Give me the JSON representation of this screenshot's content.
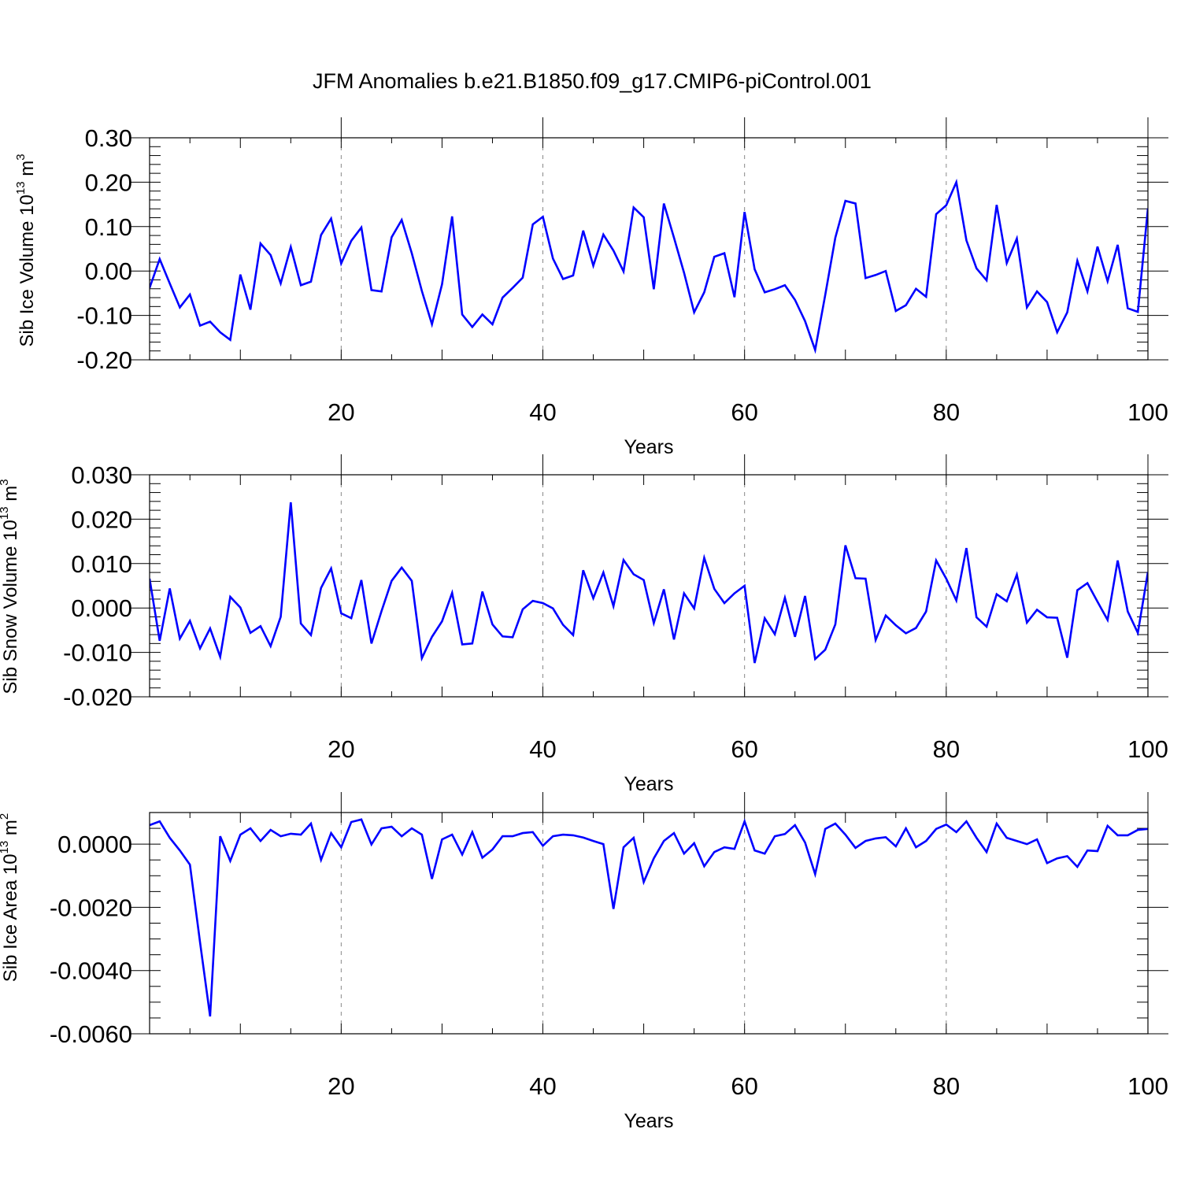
{
  "chart_data": {
    "type": "line",
    "title": "JFM Anomalies b.e21.B1850.f09_g17.CMIP6-piControl.001",
    "series_color": "#0000ff",
    "panels": [
      {
        "id": "ice-volume",
        "ylabel": "Sib Ice Volume 10",
        "ylabel_sup": "13",
        "ylabel_unit": " m",
        "ylabel_unit_sup": "3",
        "xlabel": "Years",
        "xlim": [
          1,
          100
        ],
        "ylim": [
          -0.2,
          0.3
        ],
        "xticks": [
          "20",
          "40",
          "60",
          "80",
          "100"
        ],
        "xtick_values": [
          20,
          40,
          60,
          80,
          100
        ],
        "yticks": [
          "0.30",
          "0.20",
          "0.10",
          "0.00",
          "-0.10",
          "-0.20"
        ],
        "ytick_values": [
          0.3,
          0.2,
          0.1,
          0.0,
          -0.1,
          -0.2
        ],
        "grid_x": [
          20,
          40,
          60,
          80
        ],
        "minor_y_step": 0.02,
        "values": [
          -0.038,
          0.027,
          -0.028,
          -0.082,
          -0.053,
          -0.123,
          -0.114,
          -0.138,
          -0.155,
          -0.008,
          -0.087,
          0.062,
          0.036,
          -0.028,
          0.054,
          -0.032,
          -0.024,
          0.081,
          0.118,
          0.017,
          0.068,
          0.098,
          -0.043,
          -0.046,
          0.076,
          0.115,
          0.04,
          -0.045,
          -0.12,
          -0.03,
          0.123,
          -0.098,
          -0.126,
          -0.098,
          -0.12,
          -0.06,
          -0.038,
          -0.015,
          0.105,
          0.122,
          0.028,
          -0.018,
          -0.01,
          0.091,
          0.012,
          0.082,
          0.046,
          -0.001,
          0.143,
          0.121,
          -0.041,
          0.152,
          0.075,
          -0.004,
          -0.093,
          -0.048,
          0.032,
          0.04,
          -0.059,
          0.133,
          0.004,
          -0.048,
          -0.041,
          -0.032,
          -0.065,
          -0.113,
          -0.178,
          -0.054,
          0.075,
          0.158,
          0.152,
          -0.016,
          -0.009,
          0.0,
          -0.09,
          -0.077,
          -0.04,
          -0.058,
          0.128,
          0.148,
          0.2,
          0.069,
          0.006,
          -0.021,
          0.149,
          0.018,
          0.073,
          -0.082,
          -0.046,
          -0.07,
          -0.138,
          -0.093,
          0.023,
          -0.046,
          0.055,
          -0.023,
          0.059,
          -0.084,
          -0.092,
          0.141
        ]
      },
      {
        "id": "snow-volume",
        "ylabel": "Sib Snow Volume 10",
        "ylabel_sup": "13",
        "ylabel_unit": " m",
        "ylabel_unit_sup": "3",
        "xlabel": "Years",
        "xlim": [
          1,
          100
        ],
        "ylim": [
          -0.02,
          0.03
        ],
        "xticks": [
          "20",
          "40",
          "60",
          "80",
          "100"
        ],
        "xtick_values": [
          20,
          40,
          60,
          80,
          100
        ],
        "yticks": [
          "0.030",
          "0.020",
          "0.010",
          "0.000",
          "-0.010",
          "-0.020"
        ],
        "ytick_values": [
          0.03,
          0.02,
          0.01,
          0.0,
          -0.01,
          -0.02
        ],
        "grid_x": [
          20,
          40,
          60,
          80
        ],
        "minor_y_step": 0.002,
        "values": [
          0.0066,
          -0.0074,
          0.0044,
          -0.0069,
          -0.0029,
          -0.0091,
          -0.0046,
          -0.011,
          0.0025,
          0.0001,
          -0.0056,
          -0.0041,
          -0.0086,
          -0.002,
          0.0238,
          -0.0035,
          -0.0061,
          0.0045,
          0.0089,
          -0.0012,
          -0.0023,
          0.0063,
          -0.008,
          -0.0007,
          0.0061,
          0.0091,
          0.0061,
          -0.0113,
          -0.0065,
          -0.003,
          0.0034,
          -0.0082,
          -0.008,
          0.0037,
          -0.0037,
          -0.0064,
          -0.0066,
          -0.0003,
          0.0016,
          0.0011,
          -0.0001,
          -0.0038,
          -0.0061,
          0.0085,
          0.0022,
          0.008,
          0.0004,
          0.0108,
          0.0076,
          0.0063,
          -0.0034,
          0.0042,
          -0.0071,
          0.0033,
          -0.0001,
          0.0113,
          0.0043,
          0.0011,
          0.0033,
          0.005,
          -0.0124,
          -0.0023,
          -0.0059,
          0.0023,
          -0.0065,
          0.0027,
          -0.0115,
          -0.0094,
          -0.0037,
          0.0141,
          0.0067,
          0.0066,
          -0.0072,
          -0.0017,
          -0.0039,
          -0.0057,
          -0.0045,
          -0.0008,
          0.0107,
          0.0066,
          0.0017,
          0.0135,
          -0.0021,
          -0.0042,
          0.0031,
          0.0015,
          0.0075,
          -0.0033,
          -0.0004,
          -0.0021,
          -0.0022,
          -0.0112,
          0.004,
          0.0056,
          0.0014,
          -0.0027,
          0.0107,
          -0.0008,
          -0.0056,
          0.0081
        ]
      },
      {
        "id": "ice-area",
        "ylabel": "Sib Ice Area 10",
        "ylabel_sup": "13",
        "ylabel_unit": " m",
        "ylabel_unit_sup": "2",
        "xlabel": "Years",
        "xlim": [
          1,
          100
        ],
        "ylim": [
          -0.006,
          0.001
        ],
        "xticks": [
          "20",
          "40",
          "60",
          "80",
          "100"
        ],
        "xtick_values": [
          20,
          40,
          60,
          80,
          100
        ],
        "yticks": [
          "0.0000",
          "-0.0020",
          "-0.0040",
          "-0.0060"
        ],
        "ytick_values": [
          0.0,
          -0.002,
          -0.004,
          -0.006
        ],
        "grid_x": [
          20,
          40,
          60,
          80
        ],
        "minor_y_step": 0.0005,
        "values": [
          0.0006,
          0.00072,
          0.0002,
          -0.0002,
          -0.00065,
          -0.0031,
          -0.00545,
          0.00025,
          -0.00053,
          0.0003,
          0.0005,
          0.0001,
          0.00045,
          0.00025,
          0.00033,
          0.0003,
          0.00065,
          -0.0005,
          0.00035,
          -0.0001,
          0.0007,
          0.00078,
          -1e-05,
          0.0005,
          0.00055,
          0.00025,
          0.0005,
          0.0003,
          -0.0011,
          0.00015,
          0.0003,
          -0.00033,
          0.00038,
          -0.00043,
          -0.00017,
          0.00025,
          0.00025,
          0.00035,
          0.00038,
          -5e-05,
          0.00025,
          0.0003,
          0.00028,
          0.00021,
          0.0001,
          0.0,
          -0.00205,
          -0.0001,
          0.0002,
          -0.0012,
          -0.00045,
          0.0001,
          0.00035,
          -0.0003,
          3e-05,
          -0.0007,
          -0.00025,
          -0.0001,
          -0.00015,
          0.00072,
          -0.0002,
          -0.0003,
          0.00025,
          0.00032,
          0.0006,
          5e-05,
          -0.00095,
          0.00048,
          0.00065,
          0.0003,
          -0.00012,
          0.0001,
          0.00018,
          0.00022,
          -7e-05,
          0.0005,
          -0.0001,
          0.0001,
          0.00048,
          0.00062,
          0.00038,
          0.00072,
          0.0002,
          -0.00025,
          0.00065,
          0.0002,
          0.0001,
          0.0,
          0.00015,
          -0.0006,
          -0.00045,
          -0.00038,
          -0.00072,
          -0.0002,
          -0.00022,
          0.00058,
          0.00028,
          0.00028,
          0.00045,
          0.00048
        ]
      }
    ]
  }
}
